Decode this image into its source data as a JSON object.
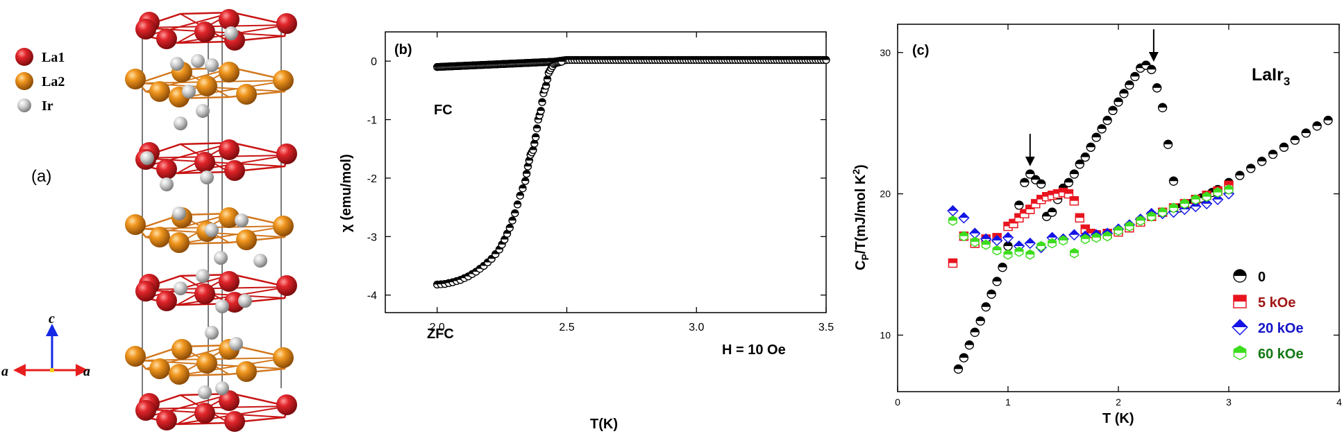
{
  "panel_a": {
    "label": "(a)",
    "legend": [
      {
        "name": "La1",
        "color": "#d9141e"
      },
      {
        "name": "La2",
        "color": "#f0941e"
      },
      {
        "name": "Ir",
        "color": "#c8c8c8"
      }
    ],
    "axes_labels": {
      "c": "c",
      "a_left": "a",
      "a_right": "a"
    }
  },
  "chart_data": [
    {
      "type": "scatter",
      "panel_label": "(b)",
      "xlabel": "T(K)",
      "ylabel": "χ (emu/mol)",
      "xlim": [
        1.8,
        3.5
      ],
      "ylim": [
        -4.3,
        0.5
      ],
      "xticks": [
        "2.0",
        "2.5",
        "3.0",
        "3.5"
      ],
      "yticks": [
        "0",
        "-1",
        "-2",
        "-3",
        "-4"
      ],
      "annotation": "H = 10 Oe",
      "series": [
        {
          "name": "FC",
          "marker": "half-filled-circle",
          "x": [
            2.0,
            2.05,
            2.1,
            2.15,
            2.2,
            2.25,
            2.3,
            2.35,
            2.4,
            2.45,
            2.5,
            2.6,
            2.7,
            2.8,
            2.9,
            3.0,
            3.1,
            3.2,
            3.3,
            3.4,
            3.5
          ],
          "y": [
            -0.1,
            -0.09,
            -0.08,
            -0.07,
            -0.06,
            -0.05,
            -0.04,
            -0.03,
            -0.02,
            -0.01,
            0.02,
            0.02,
            0.02,
            0.02,
            0.02,
            0.02,
            0.02,
            0.02,
            0.02,
            0.02,
            0.02
          ]
        },
        {
          "name": "ZFC",
          "marker": "half-filled-circle",
          "x": [
            2.0,
            2.03,
            2.06,
            2.09,
            2.12,
            2.15,
            2.18,
            2.21,
            2.24,
            2.26,
            2.28,
            2.3,
            2.32,
            2.34,
            2.35,
            2.36,
            2.37,
            2.38,
            2.39,
            2.4,
            2.41,
            2.42,
            2.43,
            2.44,
            2.45,
            2.46,
            2.47,
            2.48
          ],
          "y": [
            -3.82,
            -3.81,
            -3.78,
            -3.74,
            -3.68,
            -3.6,
            -3.5,
            -3.38,
            -3.22,
            -3.05,
            -2.85,
            -2.6,
            -2.3,
            -2.05,
            -1.8,
            -1.6,
            -1.52,
            -1.3,
            -1.0,
            -0.85,
            -0.55,
            -0.42,
            -0.2,
            -0.12,
            -0.05,
            -0.03,
            -0.02,
            -0.01
          ]
        }
      ]
    },
    {
      "type": "scatter",
      "panel_label": "(c)",
      "xlabel": "T (K)",
      "ylabel": "C_P/T(mJ/mol K^2)",
      "xlim": [
        0,
        4
      ],
      "ylim": [
        6,
        32
      ],
      "xticks": [
        "0",
        "1",
        "2",
        "3",
        "4"
      ],
      "yticks": [
        "10",
        "20",
        "30"
      ],
      "compound": "LaIr3",
      "arrows_at": [
        1.2,
        2.32
      ],
      "legend_position": "bottom-right",
      "series": [
        {
          "name": "0",
          "color": "#000000",
          "marker": "half-filled-circle",
          "x": [
            0.55,
            0.6,
            0.65,
            0.7,
            0.75,
            0.8,
            0.85,
            0.9,
            0.95,
            1.0,
            1.05,
            1.1,
            1.15,
            1.2,
            1.25,
            1.3,
            1.35,
            1.4,
            1.45,
            1.5,
            1.55,
            1.6,
            1.65,
            1.7,
            1.75,
            1.8,
            1.85,
            1.9,
            1.95,
            2.0,
            2.05,
            2.1,
            2.15,
            2.2,
            2.25,
            2.3,
            2.35,
            2.4,
            2.45,
            2.5,
            2.55,
            2.6,
            2.65,
            2.7,
            2.75,
            2.8,
            2.85,
            2.9,
            3.0,
            3.1,
            3.2,
            3.3,
            3.4,
            3.5,
            3.6,
            3.7,
            3.8,
            3.9
          ],
          "y": [
            7.6,
            8.4,
            9.3,
            10.2,
            11.0,
            12.0,
            12.9,
            13.8,
            14.8,
            16.3,
            17.9,
            19.2,
            20.8,
            21.4,
            21.0,
            20.7,
            18.4,
            18.7,
            19.6,
            20.4,
            20.8,
            21.4,
            22.1,
            22.6,
            23.3,
            24.0,
            24.6,
            25.2,
            25.9,
            26.5,
            27.1,
            27.7,
            28.3,
            28.9,
            29.1,
            28.8,
            27.5,
            26.1,
            23.5,
            20.9,
            19.0,
            19.2,
            19.3,
            19.5,
            19.7,
            19.9,
            20.1,
            20.3,
            20.8,
            21.3,
            21.8,
            22.3,
            22.8,
            23.3,
            23.8,
            24.3,
            24.8,
            25.2
          ]
        },
        {
          "name": "5 kOe",
          "color": "#e8141e",
          "marker": "half-filled-square",
          "x": [
            0.5,
            0.6,
            0.7,
            0.8,
            0.9,
            1.0,
            1.05,
            1.1,
            1.15,
            1.2,
            1.25,
            1.3,
            1.35,
            1.4,
            1.45,
            1.5,
            1.55,
            1.6,
            1.65,
            1.7,
            1.75,
            1.8,
            1.9,
            2.0,
            2.1,
            2.2,
            2.3,
            2.4,
            2.5,
            2.6,
            2.7,
            2.8,
            2.9,
            3.0
          ],
          "y": [
            15.1,
            17.0,
            16.5,
            16.8,
            16.9,
            17.7,
            17.9,
            18.3,
            18.6,
            18.9,
            19.3,
            19.6,
            19.8,
            19.9,
            20.0,
            20.1,
            20.0,
            19.5,
            18.3,
            17.5,
            17.2,
            17.1,
            17.2,
            17.3,
            17.6,
            18.0,
            18.4,
            18.7,
            19.0,
            19.3,
            19.6,
            19.9,
            20.2,
            20.6
          ]
        },
        {
          "name": "20 kOe",
          "color": "#1414e6",
          "marker": "half-filled-diamond",
          "x": [
            0.5,
            0.6,
            0.7,
            0.8,
            0.9,
            1.0,
            1.1,
            1.2,
            1.3,
            1.4,
            1.5,
            1.6,
            1.7,
            1.8,
            1.9,
            2.0,
            2.1,
            2.2,
            2.3,
            2.4,
            2.5,
            2.6,
            2.7,
            2.8,
            2.9,
            3.0
          ],
          "y": [
            18.8,
            18.3,
            17.2,
            16.8,
            16.7,
            16.9,
            16.3,
            16.5,
            16.2,
            16.9,
            16.8,
            17.1,
            17.0,
            17.1,
            17.2,
            17.5,
            17.8,
            18.2,
            18.6,
            18.6,
            18.7,
            18.9,
            19.1,
            19.3,
            19.6,
            20.0
          ]
        },
        {
          "name": "60 kOe",
          "color": "#3cdc1e",
          "marker": "half-filled-hexagon",
          "x": [
            0.5,
            0.6,
            0.7,
            0.8,
            0.9,
            1.0,
            1.1,
            1.2,
            1.3,
            1.4,
            1.5,
            1.6,
            1.7,
            1.8,
            1.9,
            2.0,
            2.1,
            2.2,
            2.3,
            2.4,
            2.5,
            2.6,
            2.7,
            2.8,
            2.9,
            3.0
          ],
          "y": [
            18.1,
            17.0,
            16.6,
            16.4,
            16.0,
            15.7,
            15.9,
            15.7,
            16.3,
            16.5,
            16.7,
            15.8,
            16.8,
            16.9,
            17.0,
            17.4,
            17.7,
            18.1,
            18.4,
            18.7,
            19.0,
            19.3,
            19.6,
            19.8,
            20.1,
            20.3
          ]
        }
      ]
    }
  ]
}
